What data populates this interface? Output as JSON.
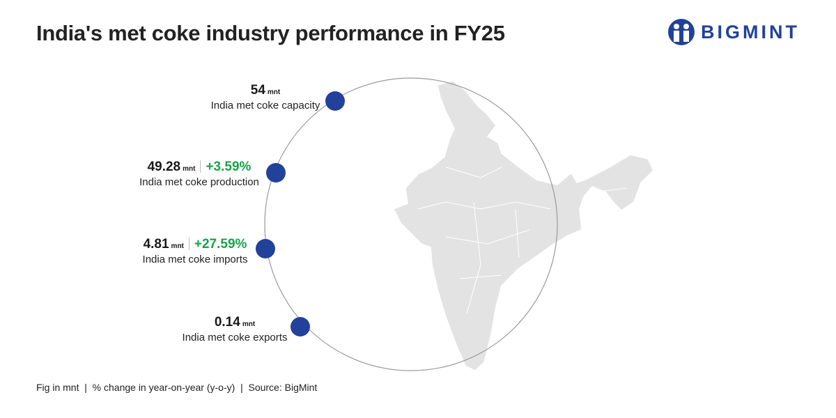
{
  "title": "India's met coke industry performance in FY25",
  "logo": {
    "text": "BIGMINT",
    "color": "#22419a"
  },
  "colors": {
    "dot": "#22419a",
    "positive": "#17a34a",
    "map": "#e3e3e3"
  },
  "stats": [
    {
      "value": "54",
      "unit": "mnt",
      "change": "",
      "label": "India met coke capacity"
    },
    {
      "value": "49.28",
      "unit": "mnt",
      "change": "+3.59%",
      "label": "India met coke production"
    },
    {
      "value": "4.81",
      "unit": "mnt",
      "change": "+27.59%",
      "label": "India met coke imports"
    },
    {
      "value": "0.14",
      "unit": "mnt",
      "change": "",
      "label": "India met coke exports"
    }
  ],
  "footer": "Fig in mnt  |  % change in year-on-year (y-o-y)  |  Source: BigMint"
}
